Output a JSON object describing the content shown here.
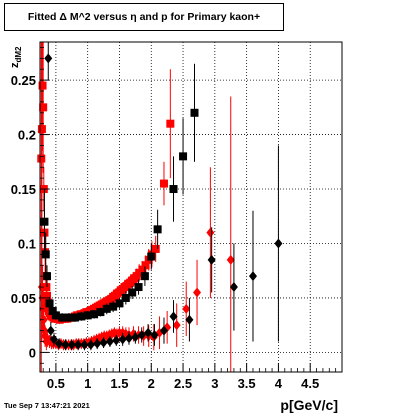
{
  "title_box": {
    "text": "Fitted Δ M^2 versus η and p for Primary kaon+"
  },
  "timestamp": "Tue Sep  7 13:47:21 2021",
  "chart_data": {
    "type": "scatter",
    "xlabel": "p[GeV/c]",
    "ylabel": "z",
    "ylabel_sub": "dM2",
    "xlim": [
      0.25,
      5.0
    ],
    "ylim": [
      -0.018,
      0.285
    ],
    "x_ticks": [
      0.5,
      1,
      1.5,
      2,
      2.5,
      3,
      3.5,
      4,
      4.5
    ],
    "x_tick_labels": [
      "0.5",
      "1",
      "1.5",
      "2",
      "2.5",
      "3",
      "3.5",
      "4",
      "4.5"
    ],
    "y_ticks": [
      0,
      0.05,
      0.1,
      0.15,
      0.2,
      0.25
    ],
    "y_tick_labels": [
      "0",
      "0.05",
      "0.1",
      "0.15",
      "0.2",
      "0.25"
    ],
    "grid": true,
    "colors": {
      "red": "#ff0000",
      "black": "#000000"
    },
    "series": [
      {
        "color": "red",
        "marker": "square",
        "points": [
          [
            0.27,
            0.178,
            0.27
          ],
          [
            0.28,
            0.205,
            0.1
          ],
          [
            0.29,
            0.245,
            0.06
          ],
          [
            0.3,
            0.225,
            0.06
          ],
          [
            0.31,
            0.15,
            0.02
          ],
          [
            0.32,
            0.11,
            0.02
          ],
          [
            0.33,
            0.092,
            0.02
          ],
          [
            0.34,
            0.07,
            0.012
          ],
          [
            0.35,
            0.06,
            0.01
          ],
          [
            0.36,
            0.052,
            0.01
          ],
          [
            0.37,
            0.046,
            0.008
          ],
          [
            0.38,
            0.041,
            0.007
          ],
          [
            0.39,
            0.038,
            0.006
          ],
          [
            0.4,
            0.036,
            0.006
          ],
          [
            0.42,
            0.034,
            0.005
          ],
          [
            0.44,
            0.033,
            0.004
          ],
          [
            0.46,
            0.032,
            0.004
          ],
          [
            0.48,
            0.031,
            0.004
          ],
          [
            0.5,
            0.031,
            0.004
          ],
          [
            0.53,
            0.031,
            0.004
          ],
          [
            0.56,
            0.03,
            0.004
          ],
          [
            0.59,
            0.031,
            0.004
          ],
          [
            0.62,
            0.031,
            0.004
          ],
          [
            0.65,
            0.031,
            0.004
          ],
          [
            0.68,
            0.031,
            0.004
          ],
          [
            0.71,
            0.032,
            0.004
          ],
          [
            0.74,
            0.032,
            0.004
          ],
          [
            0.77,
            0.032,
            0.004
          ],
          [
            0.8,
            0.033,
            0.004
          ],
          [
            0.83,
            0.034,
            0.004
          ],
          [
            0.86,
            0.034,
            0.004
          ],
          [
            0.89,
            0.035,
            0.004
          ],
          [
            0.92,
            0.035,
            0.004
          ],
          [
            0.95,
            0.036,
            0.004
          ],
          [
            0.98,
            0.037,
            0.004
          ],
          [
            1.01,
            0.037,
            0.004
          ],
          [
            1.04,
            0.038,
            0.004
          ],
          [
            1.07,
            0.039,
            0.004
          ],
          [
            1.1,
            0.04,
            0.004
          ],
          [
            1.13,
            0.041,
            0.004
          ],
          [
            1.16,
            0.042,
            0.004
          ],
          [
            1.19,
            0.043,
            0.004
          ],
          [
            1.22,
            0.044,
            0.004
          ],
          [
            1.25,
            0.045,
            0.005
          ],
          [
            1.28,
            0.046,
            0.005
          ],
          [
            1.31,
            0.047,
            0.005
          ],
          [
            1.34,
            0.048,
            0.005
          ],
          [
            1.37,
            0.049,
            0.005
          ],
          [
            1.4,
            0.051,
            0.005
          ],
          [
            1.43,
            0.052,
            0.005
          ],
          [
            1.46,
            0.054,
            0.005
          ],
          [
            1.49,
            0.055,
            0.005
          ],
          [
            1.52,
            0.057,
            0.005
          ],
          [
            1.55,
            0.058,
            0.005
          ],
          [
            1.58,
            0.06,
            0.006
          ],
          [
            1.61,
            0.061,
            0.006
          ],
          [
            1.64,
            0.063,
            0.006
          ],
          [
            1.67,
            0.064,
            0.006
          ],
          [
            1.7,
            0.066,
            0.006
          ],
          [
            1.73,
            0.068,
            0.006
          ],
          [
            1.77,
            0.07,
            0.007
          ],
          [
            1.81,
            0.073,
            0.008
          ],
          [
            1.86,
            0.076,
            0.008
          ],
          [
            1.91,
            0.08,
            0.009
          ],
          [
            1.96,
            0.085,
            0.01
          ],
          [
            2.01,
            0.09,
            0.012
          ],
          [
            2.07,
            0.095,
            0.012
          ],
          [
            2.2,
            0.155,
            0.02
          ],
          [
            2.3,
            0.21,
            0.05
          ]
        ]
      },
      {
        "color": "red",
        "marker": "diamond",
        "points": [
          [
            0.28,
            0.06,
            0.05
          ],
          [
            0.29,
            0.05,
            0.03
          ],
          [
            0.3,
            0.04,
            0.02
          ],
          [
            0.31,
            0.03,
            0.015
          ],
          [
            0.32,
            0.02,
            0.012
          ],
          [
            0.33,
            0.015,
            0.01
          ],
          [
            0.35,
            0.01,
            0.008
          ],
          [
            0.37,
            0.012,
            0.007
          ],
          [
            0.4,
            0.01,
            0.006
          ],
          [
            0.43,
            0.009,
            0.006
          ],
          [
            0.46,
            0.008,
            0.005
          ],
          [
            0.5,
            0.008,
            0.005
          ],
          [
            0.54,
            0.007,
            0.005
          ],
          [
            0.58,
            0.008,
            0.005
          ],
          [
            0.62,
            0.007,
            0.005
          ],
          [
            0.66,
            0.007,
            0.005
          ],
          [
            0.7,
            0.007,
            0.005
          ],
          [
            0.74,
            0.007,
            0.005
          ],
          [
            0.78,
            0.007,
            0.005
          ],
          [
            0.82,
            0.008,
            0.005
          ],
          [
            0.86,
            0.008,
            0.005
          ],
          [
            0.9,
            0.008,
            0.005
          ],
          [
            0.94,
            0.008,
            0.005
          ],
          [
            0.98,
            0.009,
            0.005
          ],
          [
            1.02,
            0.009,
            0.005
          ],
          [
            1.06,
            0.01,
            0.005
          ],
          [
            1.1,
            0.011,
            0.005
          ],
          [
            1.14,
            0.012,
            0.005
          ],
          [
            1.18,
            0.013,
            0.005
          ],
          [
            1.22,
            0.014,
            0.005
          ],
          [
            1.26,
            0.015,
            0.005
          ],
          [
            1.3,
            0.015,
            0.005
          ],
          [
            1.34,
            0.016,
            0.005
          ],
          [
            1.38,
            0.017,
            0.005
          ],
          [
            1.42,
            0.018,
            0.005
          ],
          [
            1.46,
            0.017,
            0.005
          ],
          [
            1.5,
            0.018,
            0.006
          ],
          [
            1.55,
            0.018,
            0.006
          ],
          [
            1.6,
            0.017,
            0.006
          ],
          [
            1.65,
            0.016,
            0.007
          ],
          [
            1.72,
            0.017,
            0.007
          ],
          [
            1.8,
            0.016,
            0.008
          ],
          [
            1.88,
            0.015,
            0.009
          ],
          [
            1.96,
            0.015,
            0.01
          ],
          [
            2.04,
            0.014,
            0.012
          ],
          [
            2.13,
            0.018,
            0.015
          ],
          [
            2.25,
            0.023,
            0.015
          ],
          [
            2.4,
            0.025,
            0.02
          ],
          [
            2.55,
            0.04,
            0.025
          ],
          [
            2.72,
            0.055,
            0.03
          ],
          [
            2.93,
            0.11,
            0.06
          ],
          [
            3.25,
            0.085,
            0.15
          ]
        ]
      },
      {
        "color": "black",
        "marker": "square",
        "points": [
          [
            0.32,
            0.12,
            0.03
          ],
          [
            0.34,
            0.09,
            0.02
          ],
          [
            0.36,
            0.07,
            0.01
          ],
          [
            0.4,
            0.045,
            0.006
          ],
          [
            0.45,
            0.038,
            0.005
          ],
          [
            0.5,
            0.034,
            0.004
          ],
          [
            0.6,
            0.032,
            0.004
          ],
          [
            0.7,
            0.032,
            0.004
          ],
          [
            0.8,
            0.032,
            0.004
          ],
          [
            0.9,
            0.033,
            0.004
          ],
          [
            1.0,
            0.034,
            0.004
          ],
          [
            1.1,
            0.035,
            0.004
          ],
          [
            1.2,
            0.037,
            0.004
          ],
          [
            1.3,
            0.04,
            0.005
          ],
          [
            1.4,
            0.042,
            0.005
          ],
          [
            1.5,
            0.045,
            0.005
          ],
          [
            1.6,
            0.05,
            0.006
          ],
          [
            1.7,
            0.055,
            0.006
          ],
          [
            1.8,
            0.06,
            0.007
          ],
          [
            1.9,
            0.07,
            0.009
          ],
          [
            2.0,
            0.088,
            0.012
          ],
          [
            2.1,
            0.113,
            0.018
          ],
          [
            2.35,
            0.15,
            0.03
          ],
          [
            2.5,
            0.18,
            0.035
          ],
          [
            2.68,
            0.22,
            0.045
          ]
        ]
      },
      {
        "color": "black",
        "marker": "diamond",
        "points": [
          [
            0.38,
            0.27,
            0.02
          ],
          [
            0.42,
            0.02,
            0.008
          ],
          [
            0.47,
            0.012,
            0.006
          ],
          [
            0.55,
            0.008,
            0.005
          ],
          [
            0.65,
            0.007,
            0.005
          ],
          [
            0.75,
            0.007,
            0.005
          ],
          [
            0.85,
            0.007,
            0.005
          ],
          [
            0.95,
            0.007,
            0.005
          ],
          [
            1.05,
            0.007,
            0.005
          ],
          [
            1.15,
            0.008,
            0.005
          ],
          [
            1.25,
            0.009,
            0.005
          ],
          [
            1.35,
            0.01,
            0.005
          ],
          [
            1.45,
            0.011,
            0.005
          ],
          [
            1.55,
            0.012,
            0.006
          ],
          [
            1.65,
            0.013,
            0.006
          ],
          [
            1.75,
            0.014,
            0.006
          ],
          [
            1.85,
            0.016,
            0.007
          ],
          [
            1.95,
            0.018,
            0.008
          ],
          [
            2.05,
            0.016,
            0.01
          ],
          [
            2.2,
            0.02,
            0.012
          ],
          [
            2.35,
            0.033,
            0.015
          ],
          [
            2.6,
            0.03,
            0.02
          ],
          [
            2.95,
            0.085,
            0.03
          ],
          [
            3.3,
            0.06,
            0.04
          ],
          [
            3.6,
            0.07,
            0.06
          ],
          [
            4.0,
            0.1,
            0.09
          ]
        ]
      }
    ]
  }
}
